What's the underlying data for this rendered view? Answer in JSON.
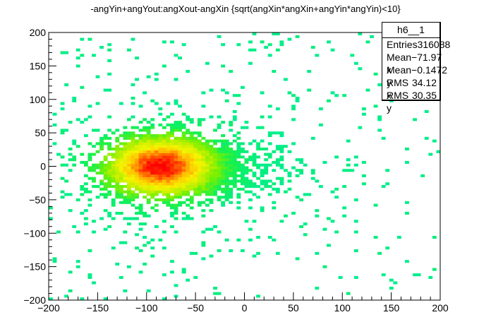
{
  "title": "-angYin+angYout:angXout-angXin {sqrt(angXin*angXin+angYin*angYin)<10}",
  "stats": {
    "name": "h6__1",
    "rows": [
      {
        "label": "Entries",
        "value": "316088"
      },
      {
        "label": "Mean x",
        "value": "−71.97"
      },
      {
        "label": "Mean y",
        "value": "−0.1472"
      },
      {
        "label": "RMS x",
        "value": "34.12"
      },
      {
        "label": "RMS y",
        "value": "30.35"
      }
    ]
  },
  "colors": {
    "low": "#00f07f",
    "mid": "#f5f500",
    "high": "#ff0000"
  },
  "chart_data": {
    "type": "heatmap",
    "title": "-angYin+angYout:angXout-angXin {sqrt(angXin*angXin+angYin*angYin)<10}",
    "xlabel": "",
    "ylabel": "",
    "xlim": [
      -200,
      200
    ],
    "ylim": [
      -200,
      200
    ],
    "xticks": [
      "−200",
      "−150",
      "−100",
      "−50",
      "0",
      "50",
      "100",
      "150",
      "200"
    ],
    "yticks": [
      "200",
      "150",
      "100",
      "50",
      "0",
      "−50",
      "−100",
      "−150",
      "−200"
    ],
    "bins": [
      100,
      100
    ],
    "center": [
      -85,
      0
    ],
    "rms": [
      34.12,
      30.35
    ],
    "entries": 316088,
    "mean_x": -71.97,
    "mean_y": -0.1472,
    "colormap": "rainbow: green-cyan (low) through yellow to red (high)"
  }
}
